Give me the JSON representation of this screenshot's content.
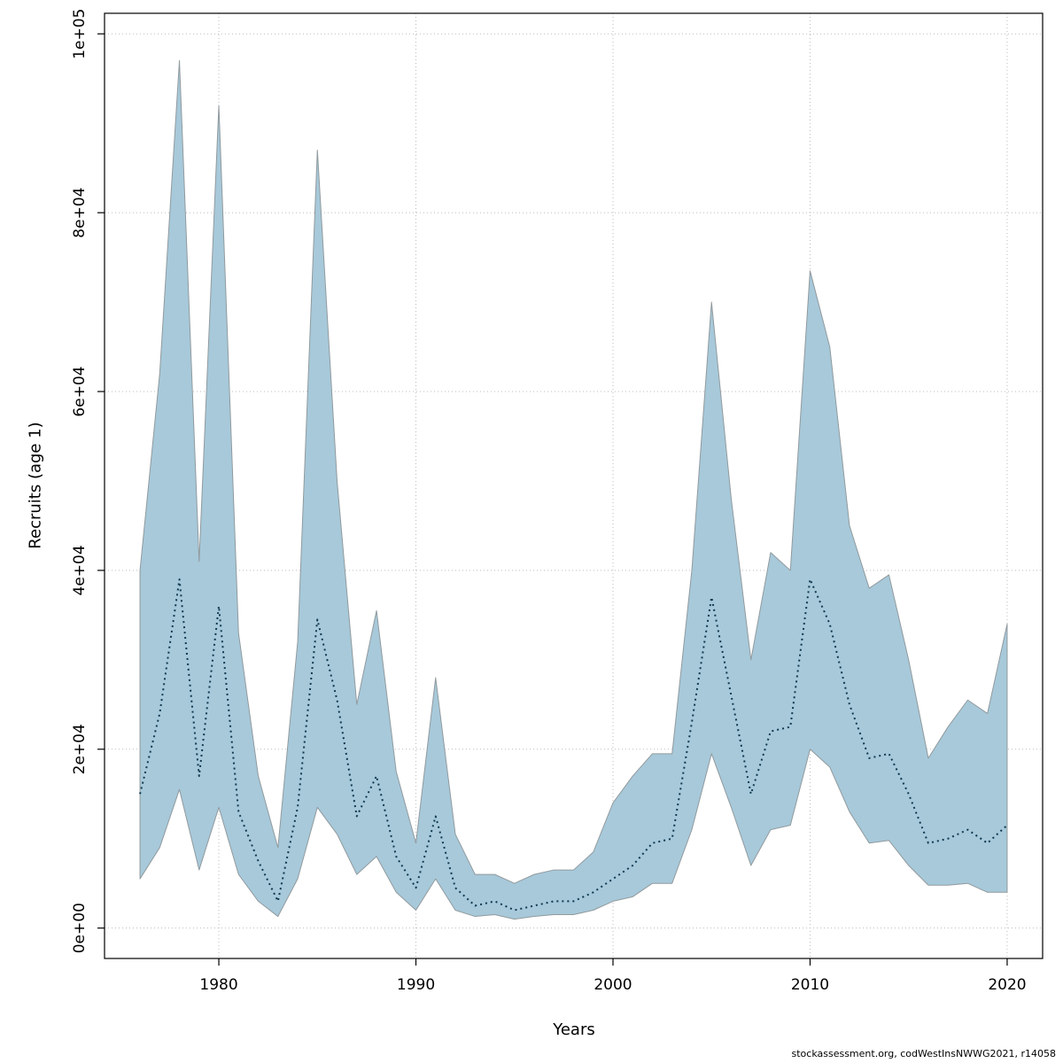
{
  "chart_data": {
    "type": "line",
    "title": "",
    "xlabel": "Years",
    "ylabel": "Recruits (age 1)",
    "legend": "none",
    "grid": "dotted",
    "x": [
      1976,
      1977,
      1978,
      1979,
      1980,
      1981,
      1982,
      1983,
      1984,
      1985,
      1986,
      1987,
      1988,
      1989,
      1990,
      1991,
      1992,
      1993,
      1994,
      1995,
      1996,
      1997,
      1998,
      1999,
      2000,
      2001,
      2002,
      2003,
      2004,
      2005,
      2006,
      2007,
      2008,
      2009,
      2010,
      2011,
      2012,
      2013,
      2014,
      2015,
      2016,
      2017,
      2018,
      2019,
      2020
    ],
    "series": [
      {
        "name": "recruits_estimate",
        "style": "dotted-line",
        "values": [
          15000,
          24000,
          39000,
          17000,
          36000,
          13000,
          7500,
          3000,
          13500,
          34500,
          25500,
          12500,
          17000,
          8000,
          4500,
          12500,
          4500,
          2500,
          3000,
          2000,
          2500,
          3000,
          3000,
          4000,
          5500,
          7000,
          9500,
          10000,
          23000,
          37000,
          26000,
          15000,
          22000,
          22500,
          39000,
          34000,
          25000,
          19000,
          19500,
          15000,
          9500,
          10000,
          11000,
          9500,
          11500
        ]
      },
      {
        "name": "ci_lower",
        "style": "band-lower",
        "values": [
          5500,
          9000,
          15500,
          6500,
          13500,
          6000,
          3000,
          1300,
          5500,
          13500,
          10500,
          6000,
          8000,
          4000,
          2000,
          5500,
          2000,
          1300,
          1500,
          1000,
          1300,
          1500,
          1500,
          2000,
          3000,
          3500,
          5000,
          5000,
          11000,
          19500,
          13500,
          7000,
          11000,
          11500,
          20000,
          18000,
          13000,
          9500,
          9800,
          7000,
          4800,
          4800,
          5000,
          4000,
          4000
        ]
      },
      {
        "name": "ci_upper",
        "style": "band-upper",
        "values": [
          40000,
          62000,
          97000,
          41000,
          92000,
          33000,
          17000,
          9000,
          32000,
          87000,
          50000,
          25000,
          35500,
          17500,
          9500,
          28000,
          10500,
          6000,
          6000,
          5000,
          6000,
          6500,
          6500,
          8500,
          14000,
          17000,
          19500,
          19500,
          40000,
          70000,
          48000,
          30000,
          42000,
          40000,
          73500,
          65000,
          45000,
          38000,
          39500,
          30000,
          19000,
          22500,
          25500,
          24000,
          34000
        ]
      }
    ],
    "xlim": [
      1974.2,
      2021.8
    ],
    "ylim": [
      -3400,
      102300
    ],
    "x_ticks": [
      {
        "v": 1980,
        "label": "1980"
      },
      {
        "v": 1990,
        "label": "1990"
      },
      {
        "v": 2000,
        "label": "2000"
      },
      {
        "v": 2010,
        "label": "2010"
      },
      {
        "v": 2020,
        "label": "2020"
      }
    ],
    "y_ticks": [
      {
        "v": 0,
        "label": "0e+00"
      },
      {
        "v": 20000,
        "label": "2e+04"
      },
      {
        "v": 40000,
        "label": "4e+04"
      },
      {
        "v": 60000,
        "label": "6e+04"
      },
      {
        "v": 80000,
        "label": "8e+04"
      },
      {
        "v": 100000,
        "label": "1e+05"
      }
    ],
    "colors": {
      "band_fill": "#a7c9da",
      "band_stroke": "#919a9e",
      "line": "#103950",
      "grid": "#bbbbbb",
      "axis": "#000000"
    }
  },
  "footer": {
    "text": "stockassessment.org, codWestInsNWWG2021, r14058"
  }
}
